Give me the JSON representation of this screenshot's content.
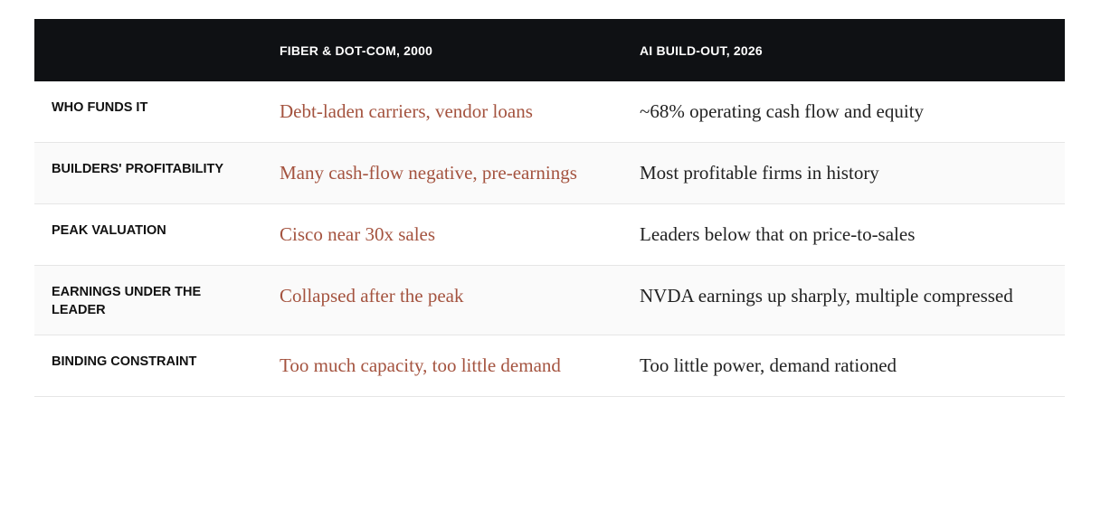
{
  "table": {
    "headers": [
      "FIBER & DOT-COM, 2000",
      "AI BUILD-OUT, 2026"
    ],
    "rows": [
      [
        "WHO FUNDS IT",
        "Debt-laden carriers, vendor loans",
        "~68% operating cash flow and equity"
      ],
      [
        "BUILDERS' PROFITABILITY",
        "Many cash-flow negative, pre-earnings",
        "Most profitable firms in history"
      ],
      [
        "PEAK VALUATION",
        "Cisco near 30x sales",
        "Leaders below that on price-to-sales"
      ],
      [
        "EARNINGS UNDER THE LEADER",
        "Collapsed after the peak",
        "NVDA earnings up sharply, multiple compressed"
      ],
      [
        "BINDING CONSTRAINT",
        "Too much capacity, too little demand",
        "Too little power, demand rationed"
      ]
    ]
  }
}
